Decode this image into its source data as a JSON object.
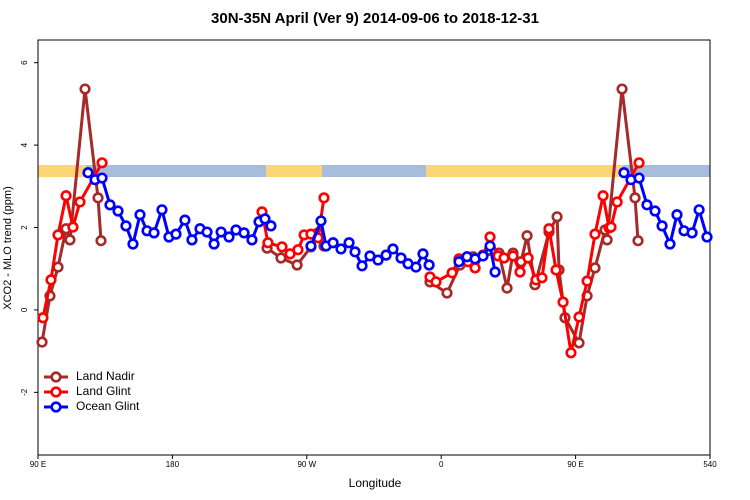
{
  "chart_data": {
    "type": "line",
    "title": "30N-35N April (Ver 9)   2014-09-06 to 2018-12-31",
    "x_label": "Longitude",
    "y_label": "XCO2 - MLO trend (ppm)",
    "xlim": [
      90,
      540
    ],
    "xticks": [
      {
        "value": 90,
        "label": "90 E"
      },
      180,
      {
        "value": 270,
        "label": "90 W"
      },
      {
        "value": 360,
        "label": "0"
      },
      {
        "value": 450,
        "label": "90 E"
      },
      540
    ],
    "ylim": [
      -3.52,
      6.55
    ],
    "yticks": [
      -2,
      0,
      2,
      4,
      6
    ],
    "legend": "bottomleft",
    "series": [
      {
        "name": "Land Nadir",
        "color": "#a52a2a",
        "x": [
          92.7,
          98.0,
          103.4,
          108.8,
          111.4,
          121.5,
          130.2,
          132.2,
          null,
          243.4,
          252.7,
          263.5,
          272.8,
          277.5,
          281.5,
          null,
          352.5,
          363.9,
          372.6,
          381.3,
          398.7,
          404.1,
          408.1,
          413.5,
          417.5,
          422.8,
          432.2,
          437.6,
          438.9,
          442.9,
          452.3,
          457.7,
          463.0,
          469.7,
          471.1,
          481.1,
          489.8,
          491.8
        ],
        "values": [
          -0.78,
          0.34,
          1.04,
          1.97,
          1.7,
          5.36,
          2.72,
          1.68,
          null,
          1.5,
          1.26,
          1.09,
          1.53,
          1.87,
          1.55,
          null,
          0.68,
          0.41,
          1.09,
          1.29,
          1.38,
          0.53,
          1.38,
          1.17,
          1.8,
          0.61,
          1.89,
          2.26,
          0.97,
          -0.19,
          -0.8,
          0.34,
          1.02,
          1.94,
          1.7,
          5.36,
          2.72,
          1.68
        ]
      },
      {
        "name": "Land Glint",
        "color": "#ff0000",
        "x": [
          93.3,
          98.7,
          103.4,
          108.8,
          113.4,
          118.1,
          132.9,
          null,
          240.0,
          244.0,
          253.4,
          258.8,
          264.1,
          268.2,
          272.8,
          277.5,
          281.5,
          null,
          352.5,
          356.5,
          367.3,
          371.9,
          378.0,
          382.7,
          388.0,
          392.7,
          398.1,
          402.1,
          408.1,
          412.8,
          418.2,
          423.5,
          427.5,
          432.2,
          436.9,
          441.6,
          446.9,
          452.3,
          457.7,
          463.0,
          468.4,
          472.4,
          473.7,
          477.8,
          492.5
        ],
        "values": [
          -0.19,
          0.73,
          1.82,
          2.77,
          2.01,
          2.62,
          3.57,
          null,
          2.38,
          1.63,
          1.53,
          1.36,
          1.46,
          1.82,
          1.84,
          1.75,
          2.72,
          null,
          0.8,
          0.68,
          0.9,
          1.24,
          1.17,
          1.02,
          1.33,
          1.77,
          1.31,
          1.26,
          1.31,
          0.92,
          1.26,
          0.73,
          0.78,
          1.97,
          0.97,
          0.19,
          -1.04,
          -0.17,
          0.7,
          1.84,
          2.77,
          1.99,
          2.01,
          2.62,
          3.57
        ]
      },
      {
        "name": "Ocean Glint",
        "color": "#0000ff",
        "x": [
          123.5,
          128.2,
          132.9,
          138.2,
          143.6,
          148.9,
          153.6,
          158.3,
          163.0,
          167.7,
          173.0,
          177.7,
          182.4,
          188.4,
          193.1,
          198.5,
          203.2,
          207.9,
          212.6,
          217.9,
          222.6,
          228.0,
          233.3,
          238.0,
          242.0,
          246.0,
          null,
          272.8,
          279.5,
          282.9,
          287.6,
          292.9,
          298.3,
          302.3,
          307.0,
          312.3,
          317.7,
          323.1,
          327.7,
          333.1,
          337.8,
          343.1,
          347.8,
          351.9,
          null,
          371.9,
          377.3,
          382.7,
          388.0,
          392.7,
          396.1,
          null,
          482.4,
          487.1,
          492.5,
          497.8,
          503.2,
          507.9,
          513.2,
          517.9,
          522.6,
          528.0,
          532.7,
          538.0
        ],
        "values": [
          3.33,
          3.16,
          3.2,
          2.55,
          2.4,
          2.04,
          1.6,
          2.31,
          1.92,
          1.87,
          2.43,
          1.77,
          1.84,
          2.18,
          1.7,
          1.97,
          1.89,
          1.6,
          1.89,
          1.77,
          1.94,
          1.87,
          1.7,
          2.14,
          2.21,
          2.04,
          null,
          1.55,
          2.16,
          1.55,
          1.63,
          1.48,
          1.63,
          1.41,
          1.07,
          1.31,
          1.21,
          1.33,
          1.48,
          1.26,
          1.12,
          1.04,
          1.36,
          1.09,
          null,
          1.17,
          1.29,
          1.24,
          1.31,
          1.55,
          0.92,
          null,
          3.33,
          3.16,
          3.2,
          2.55,
          2.4,
          2.04,
          1.6,
          2.31,
          1.92,
          1.87,
          2.43,
          1.77
        ]
      }
    ]
  }
}
